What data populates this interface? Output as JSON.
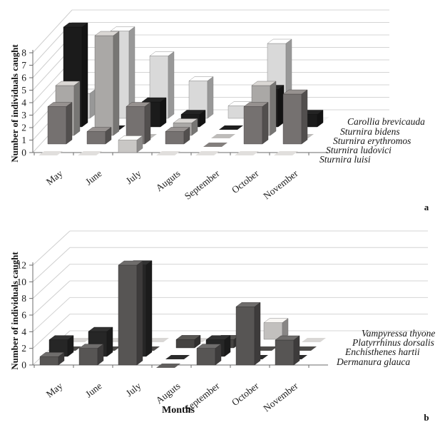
{
  "figure": {
    "y_axis_label": "Number of individuals caught",
    "months_axis_label": "Months",
    "panel_a_letter": "a",
    "panel_b_letter": "b"
  },
  "chart_data": [
    {
      "type": "bar",
      "variant": "3d-depth-series",
      "panel": "a",
      "title": "",
      "xlabel": "",
      "ylabel": "Number of individuals caught",
      "categories": [
        "May",
        "June",
        "July",
        "Auguts",
        "September",
        "October",
        "November"
      ],
      "ylim": [
        0,
        8
      ],
      "yticks": [
        0,
        1,
        2,
        3,
        4,
        5,
        6,
        7,
        8
      ],
      "grid": true,
      "legend_position": "right-staircase",
      "series_order_note": "front row first, back row last",
      "series": [
        {
          "name": "Sturnira luisi",
          "color": "#c9c7c5",
          "values": [
            0,
            0,
            1,
            0,
            0,
            0,
            0
          ]
        },
        {
          "name": "Sturnira ludovici",
          "color": "#757170",
          "values": [
            3,
            1,
            3,
            1,
            0,
            3,
            4
          ]
        },
        {
          "name": "Sturnira erythromos",
          "color": "#aaa8a6",
          "values": [
            4,
            8,
            0,
            1,
            0,
            4,
            0
          ]
        },
        {
          "name": "Sturnira bidens",
          "color": "#1b1b1b",
          "values": [
            8,
            0,
            2,
            1,
            0,
            3,
            1
          ]
        },
        {
          "name": "Carollia brevicauda",
          "color": "#d9d9d9",
          "values": [
            2,
            7,
            5,
            3,
            1,
            6,
            0
          ]
        }
      ]
    },
    {
      "type": "bar",
      "variant": "3d-depth-series",
      "panel": "b",
      "title": "",
      "xlabel": "Months",
      "ylabel": "Number of individuals caught",
      "categories": [
        "May",
        "June",
        "July",
        "Auguts",
        "September",
        "October",
        "November"
      ],
      "ylim": [
        0,
        12
      ],
      "yticks": [
        0,
        2,
        4,
        6,
        8,
        10,
        12
      ],
      "grid": true,
      "legend_position": "right-staircase",
      "series_order_note": "front row first, back row last",
      "series": [
        {
          "name": "Dermanura glauca",
          "color": "#575554",
          "values": [
            1,
            2,
            12,
            0,
            2,
            7,
            3
          ]
        },
        {
          "name": "Enchisthenes hartii",
          "color": "#262626",
          "values": [
            2,
            3,
            11,
            0,
            2,
            0,
            0
          ]
        },
        {
          "name": "Platyrrhinus dorsalis",
          "color": "#454341",
          "values": [
            0,
            0,
            0,
            1,
            1,
            0,
            0
          ]
        },
        {
          "name": "Vampyressa thyone",
          "color": "#c2c0be",
          "values": [
            0,
            0,
            0,
            0,
            0,
            2,
            0
          ]
        }
      ]
    }
  ]
}
